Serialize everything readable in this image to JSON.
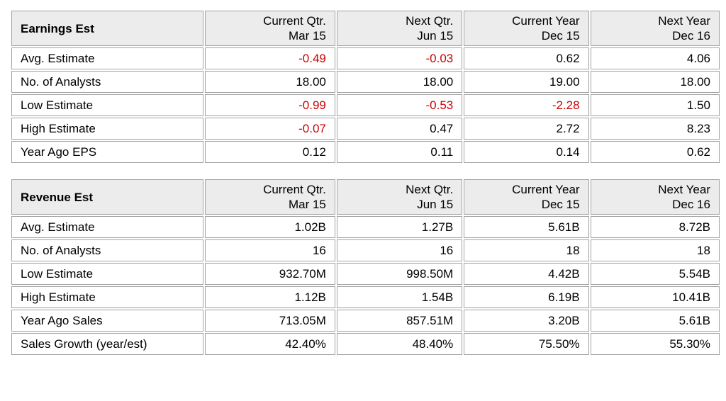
{
  "colors": {
    "neg": "#cc0000",
    "highlight": "#f23a6e",
    "header_bg": "#ececec",
    "border": "#a2a2a2",
    "text": "#000000",
    "page_bg": "#ffffff"
  },
  "tables": [
    {
      "title": "Earnings Est",
      "columns": [
        {
          "line1": "Current Qtr.",
          "line2": "Mar 15"
        },
        {
          "line1": "Next Qtr.",
          "line2": "Jun 15"
        },
        {
          "line1": "Current Year",
          "line2": "Dec 15"
        },
        {
          "line1": "Next Year",
          "line2": "Dec 16"
        }
      ],
      "rows": [
        {
          "label": "Avg. Estimate",
          "values": [
            "-0.49",
            "-0.03",
            "0.62",
            "4.06"
          ]
        },
        {
          "label": "No. of Analysts",
          "values": [
            "18.00",
            "18.00",
            "19.00",
            "18.00"
          ]
        },
        {
          "label": "Low Estimate",
          "values": [
            "-0.99",
            "-0.53",
            "-2.28",
            "1.50"
          ]
        },
        {
          "label": "High Estimate",
          "values": [
            "-0.07",
            "0.47",
            "2.72",
            "8.23"
          ]
        },
        {
          "label": "Year Ago EPS",
          "values": [
            "0.12",
            "0.11",
            "0.14",
            "0.62"
          ]
        }
      ]
    },
    {
      "title": "Revenue Est",
      "columns": [
        {
          "line1": "Current Qtr.",
          "line2": "Mar 15"
        },
        {
          "line1": "Next Qtr.",
          "line2": "Jun 15"
        },
        {
          "line1": "Current Year",
          "line2": "Dec 15"
        },
        {
          "line1": "Next Year",
          "line2": "Dec 16"
        }
      ],
      "rows": [
        {
          "label": "Avg. Estimate",
          "values": [
            "1.02B",
            "1.27B",
            "5.61B",
            "8.72B"
          ]
        },
        {
          "label": "No. of Analysts",
          "values": [
            "16",
            "16",
            "18",
            "18"
          ]
        },
        {
          "label": "Low Estimate",
          "values": [
            "932.70M",
            "998.50M",
            "4.42B",
            "5.54B"
          ]
        },
        {
          "label": "High Estimate",
          "values": [
            "1.12B",
            "1.54B",
            "6.19B",
            "10.41B"
          ]
        },
        {
          "label": "Year Ago Sales",
          "values": [
            "713.05M",
            "857.51M",
            "3.20B",
            "5.61B"
          ]
        },
        {
          "label": "Sales Growth (year/est)",
          "values": [
            "42.40%",
            "48.40%",
            "75.50%",
            "55.30%"
          ]
        }
      ]
    }
  ]
}
